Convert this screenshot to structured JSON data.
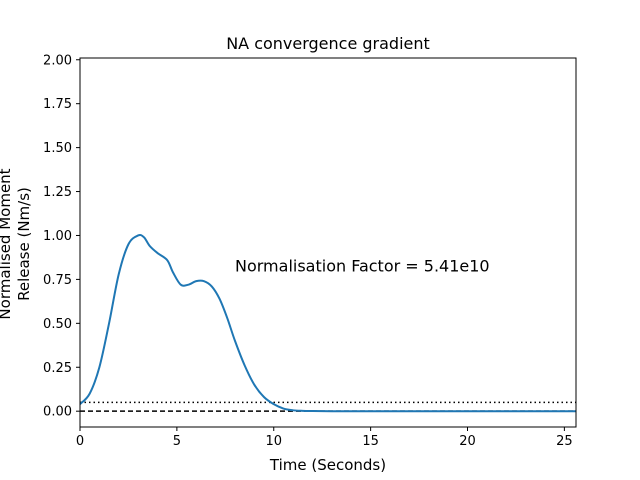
{
  "chart_data": {
    "type": "line",
    "title": "NA convergence gradient",
    "xlabel": "Time (Seconds)",
    "ylabel_lines": [
      "Normalised Moment",
      "Release (Nm/s)"
    ],
    "xlim": [
      0,
      25.6
    ],
    "ylim": [
      -0.09,
      2.01
    ],
    "xticks": [
      0,
      5,
      10,
      15,
      20,
      25
    ],
    "yticks": [
      0.0,
      0.25,
      0.5,
      0.75,
      1.0,
      1.25,
      1.5,
      1.75,
      2.0
    ],
    "ytick_labels": [
      "0.00",
      "0.25",
      "0.50",
      "0.75",
      "1.00",
      "1.25",
      "1.50",
      "1.75",
      "2.00"
    ],
    "annotation": {
      "text": "Normalisation Factor = 5.41e10",
      "x": 8.0,
      "y": 0.83
    },
    "hlines": [
      {
        "y": 0.05,
        "style": "dotted",
        "color": "#000000"
      },
      {
        "y": 0.0,
        "style": "dashed",
        "color": "#000000"
      }
    ],
    "series": [
      {
        "color": "#1f77b4",
        "x": [
          0,
          0.5,
          1.0,
          1.5,
          2.0,
          2.5,
          3.0,
          3.3,
          3.6,
          4.0,
          4.5,
          4.8,
          5.2,
          5.6,
          6.0,
          6.4,
          6.8,
          7.2,
          7.6,
          8.0,
          8.5,
          9.0,
          9.5,
          10.0,
          10.5,
          11.0,
          11.5,
          12.0,
          13.0,
          15.0,
          20.0,
          25.6
        ],
        "y": [
          0.04,
          0.1,
          0.25,
          0.5,
          0.78,
          0.95,
          1.0,
          0.99,
          0.94,
          0.9,
          0.86,
          0.79,
          0.72,
          0.72,
          0.74,
          0.74,
          0.71,
          0.64,
          0.53,
          0.4,
          0.26,
          0.15,
          0.08,
          0.04,
          0.015,
          0.005,
          0.002,
          0.001,
          0.0,
          0.0,
          0.0,
          0.0
        ]
      }
    ]
  },
  "colors": {
    "axis": "#000000",
    "line": "#1f77b4"
  }
}
